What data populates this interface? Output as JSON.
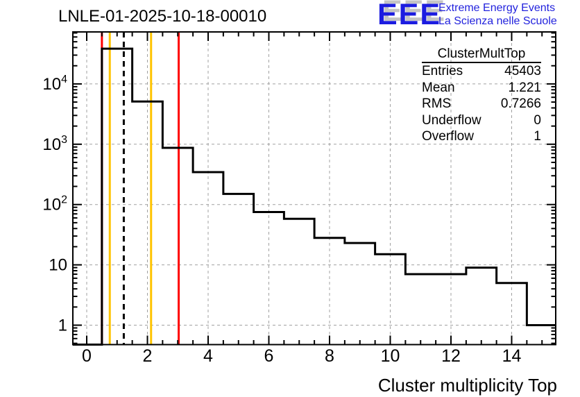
{
  "title": "LNLE-01-2025-10-18-00010",
  "logo": {
    "acronym": "EEE",
    "line1": "Extreme Energy Events",
    "line2": "La Scienza nelle Scuole",
    "blue": "#1c1ce0",
    "shadow_gray": "#c4c4c4"
  },
  "stats": {
    "title": "ClusterMultTop",
    "rows": [
      {
        "label": "Entries",
        "value": "45403"
      },
      {
        "label": "Mean",
        "value": "1.221"
      },
      {
        "label": "RMS",
        "value": "0.7266"
      },
      {
        "label": "Underflow",
        "value": "0"
      },
      {
        "label": "Overflow",
        "value": "1"
      }
    ]
  },
  "x_axis_title": "Cluster multiplicity Top",
  "chart_data": {
    "type": "bar",
    "subtype": "step-histogram",
    "title": "LNLE-01-2025-10-18-00010",
    "xlabel": "Cluster multiplicity Top",
    "ylabel": "",
    "x_range": [
      -0.5,
      15.5
    ],
    "y_scale": "log",
    "y_range": [
      0.49,
      70000
    ],
    "grid": true,
    "bin_width": 1,
    "bin_centers": [
      0,
      1,
      2,
      3,
      4,
      5,
      6,
      7,
      8,
      9,
      10,
      11,
      12,
      13,
      14,
      15
    ],
    "values": [
      0,
      38400,
      5100,
      870,
      345,
      150,
      75,
      58,
      28,
      23,
      15,
      7,
      7,
      9,
      5,
      1
    ],
    "underflow": 0,
    "overflow": 1,
    "x_major_ticks": [
      0,
      2,
      4,
      6,
      8,
      10,
      12,
      14
    ],
    "x_minor_step": 0.5,
    "y_major_ticks": [
      1,
      10,
      100,
      1000,
      10000
    ],
    "marker_lines": [
      {
        "x": 0.5,
        "color": "#ff0000",
        "style": "solid"
      },
      {
        "x": 0.76,
        "color": "#ffc400",
        "style": "solid"
      },
      {
        "x": 1.221,
        "color": "#000000",
        "style": "dashed"
      },
      {
        "x": 2.12,
        "color": "#ffc400",
        "style": "solid"
      },
      {
        "x": 3.03,
        "color": "#ff0000",
        "style": "solid"
      }
    ],
    "colors": {
      "histogram_line": "#000000",
      "grid": "#a0a0a0",
      "frame": "#000000",
      "red_line": "#ff0000",
      "orange_line": "#ffc400"
    }
  }
}
